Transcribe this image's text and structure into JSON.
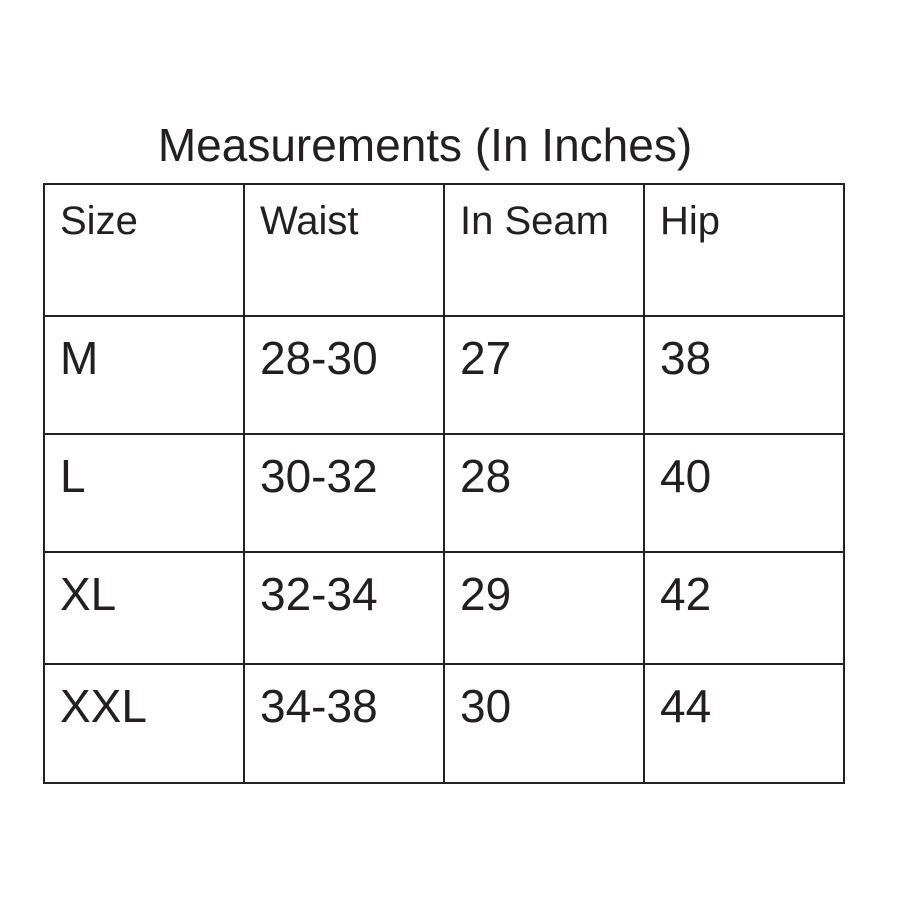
{
  "title": "Measurements (In Inches)",
  "table": {
    "headers": [
      "Size",
      "Waist",
      "In Seam",
      "Hip"
    ],
    "rows": [
      [
        "M",
        "28-30",
        "27",
        "38"
      ],
      [
        "L",
        "30-32",
        "28",
        "40"
      ],
      [
        "XL",
        "32-34",
        "29",
        "42"
      ],
      [
        "XXL",
        "34-38",
        "30",
        "44"
      ]
    ]
  }
}
